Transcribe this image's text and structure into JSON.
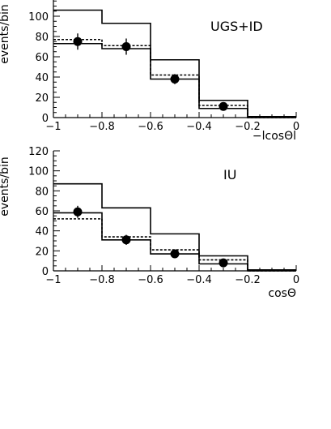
{
  "chart_data": [
    {
      "type": "histogram",
      "panel_label": "UGS+ID",
      "xlabel": "−lcosΘl",
      "ylabel": "events/bin",
      "xlim": [
        -1,
        0
      ],
      "ylim": [
        0,
        120
      ],
      "x_ticks": [
        -1,
        -0.8,
        -0.6,
        -0.4,
        -0.2,
        0
      ],
      "x_tick_labels": [
        "−1",
        "−0.8",
        "−0.6",
        "−0.4",
        "−0.2",
        "0"
      ],
      "y_ticks": [
        0,
        20,
        40,
        60,
        80,
        100
      ],
      "y_tick_labels": [
        "0",
        "20",
        "40",
        "60",
        "80",
        "100"
      ],
      "bin_edges": [
        -1,
        -0.8,
        -0.6,
        -0.4,
        -0.2,
        0
      ],
      "solid_upper": [
        106,
        93,
        57,
        17,
        1
      ],
      "dashed": [
        77,
        71,
        42,
        12,
        0
      ],
      "solid_lower": [
        73,
        68,
        38,
        9,
        0
      ],
      "points": {
        "x": [
          -0.9,
          -0.7,
          -0.5,
          -0.3
        ],
        "y": [
          75,
          70,
          38,
          11
        ],
        "err": [
          8,
          8,
          5,
          3
        ]
      }
    },
    {
      "type": "histogram",
      "panel_label": "IU",
      "xlabel": "cosΘ",
      "ylabel": "events/bin",
      "xlim": [
        -1,
        0
      ],
      "ylim": [
        0,
        120
      ],
      "x_ticks": [
        -1,
        -0.8,
        -0.6,
        -0.4,
        -0.2,
        0
      ],
      "x_tick_labels": [
        "−1",
        "−0.8",
        "−0.6",
        "−0.4",
        "−0.2",
        "0"
      ],
      "y_ticks": [
        0,
        20,
        40,
        60,
        80,
        100,
        120
      ],
      "y_tick_labels": [
        "0",
        "20",
        "40",
        "60",
        "80",
        "100",
        "120"
      ],
      "bin_edges": [
        -1,
        -0.8,
        -0.6,
        -0.4,
        -0.2,
        0
      ],
      "solid_upper": [
        87,
        63,
        37,
        15,
        1
      ],
      "dashed": [
        52,
        34,
        21,
        11,
        0
      ],
      "solid_lower": [
        58,
        31,
        17,
        7,
        0
      ],
      "points": {
        "x": [
          -0.9,
          -0.7,
          -0.5,
          -0.3
        ],
        "y": [
          59,
          31,
          17,
          8
        ],
        "err": [
          6,
          5,
          4,
          3
        ]
      }
    }
  ]
}
